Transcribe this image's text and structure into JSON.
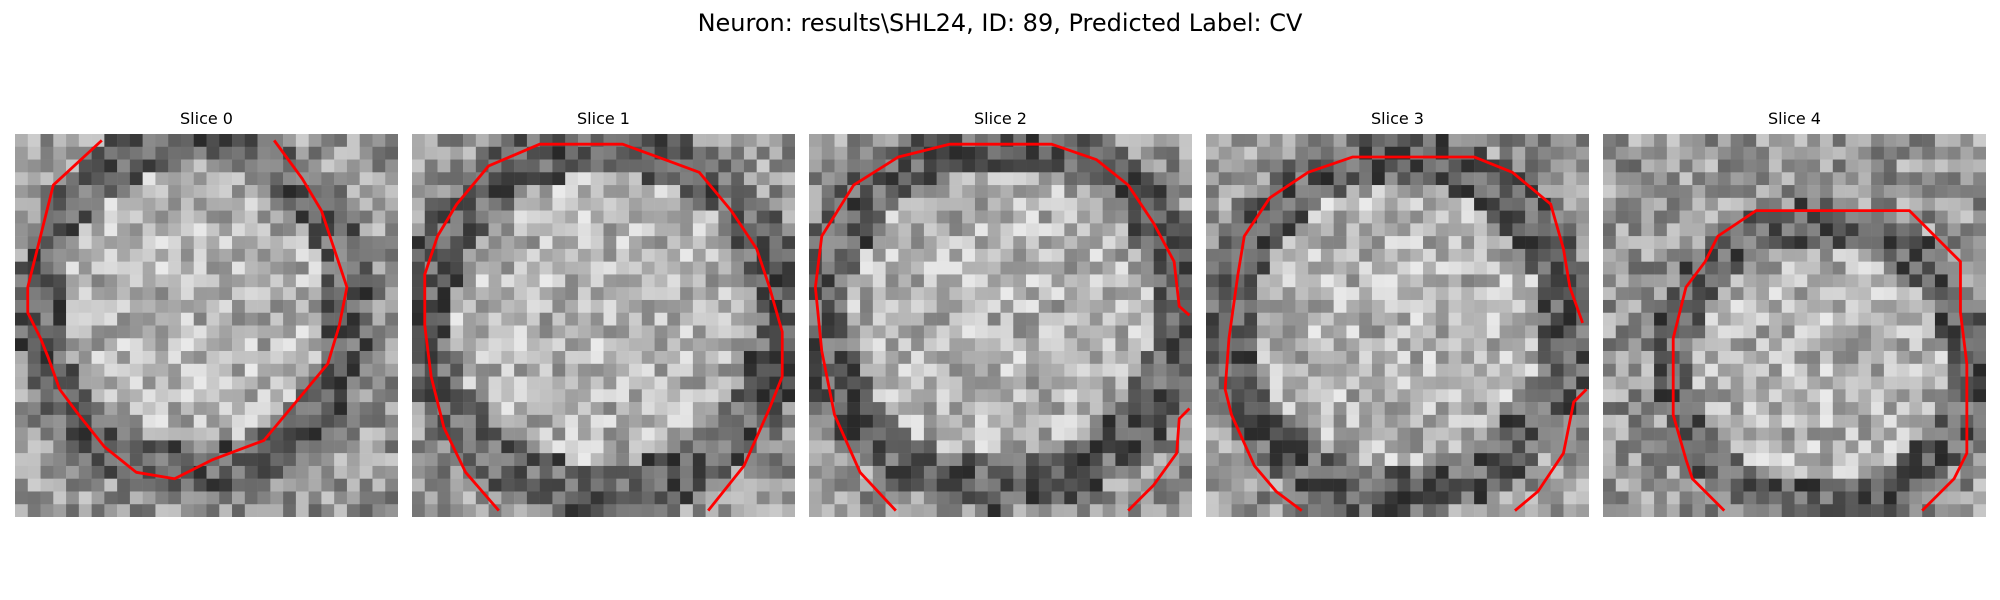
{
  "figure": {
    "title": "Neuron: results\\SHL24, ID: 89, Predicted Label: CV"
  },
  "colors": {
    "background": "#ffffff",
    "contour": "#ff0000"
  },
  "slices": [
    {
      "title": "Slice 0"
    },
    {
      "title": "Slice 1"
    },
    {
      "title": "Slice 2"
    },
    {
      "title": "Slice 3"
    },
    {
      "title": "Slice 4"
    }
  ]
}
